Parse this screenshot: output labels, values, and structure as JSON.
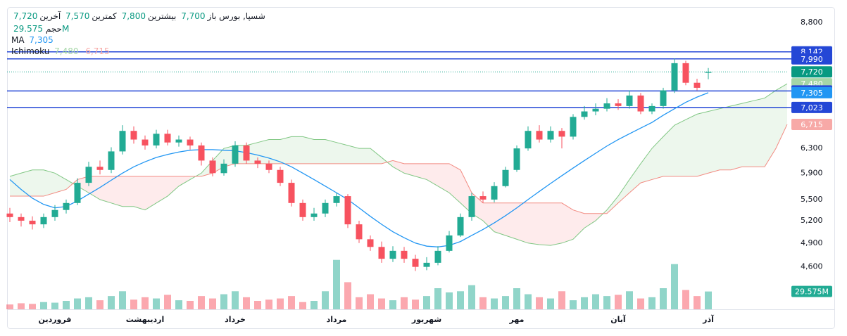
{
  "chart_data": {
    "type": "candlestick",
    "log_scale": true,
    "grid": false,
    "legend": {
      "symbol": "شسپا, بورس",
      "open_label": "باز",
      "open": "7,700",
      "high_label": "بیشترین",
      "high": "7,800",
      "low_label": "کمترین",
      "low": "7,570",
      "last_label": "آخرین",
      "last": "7,720",
      "volume_label": "حجم",
      "volume": "29.575M",
      "ma_label": "MA",
      "ma": "7,305",
      "ichimoku_label": "Ichimoku",
      "ichimoku_a": "7,480",
      "ichimoku_b": "6,715"
    },
    "categories": [
      null,
      null,
      null,
      null,
      "فروردین",
      null,
      null,
      null,
      null,
      null,
      null,
      null,
      "اردیبهشت",
      null,
      null,
      null,
      null,
      null,
      null,
      null,
      "خرداد",
      null,
      null,
      null,
      null,
      null,
      null,
      null,
      null,
      "مرداد",
      null,
      null,
      null,
      null,
      null,
      null,
      null,
      "شهریور",
      null,
      null,
      null,
      null,
      null,
      null,
      null,
      "مهر",
      null,
      null,
      null,
      null,
      null,
      null,
      null,
      null,
      "آبان",
      null,
      null,
      null,
      null,
      null,
      null,
      null,
      "آذر"
    ],
    "open": [
      5300,
      5250,
      5200,
      5150,
      5250,
      5350,
      5450,
      5750,
      6000,
      5950,
      6250,
      6600,
      6450,
      6350,
      6550,
      6400,
      6450,
      6350,
      6100,
      5900,
      6050,
      6350,
      6100,
      6050,
      5950,
      5750,
      5450,
      5250,
      5300,
      5450,
      5550,
      5150,
      4950,
      4850,
      4700,
      4800,
      4700,
      4600,
      4650,
      4800,
      5000,
      5250,
      5550,
      5500,
      5700,
      5950,
      6300,
      6600,
      6450,
      6600,
      6500,
      6850,
      6950,
      7000,
      7100,
      7050,
      7250,
      6950,
      7050,
      7350,
      7900,
      7500,
      7700
    ],
    "high": [
      5380,
      5300,
      5260,
      5300,
      5420,
      5500,
      5820,
      6080,
      6100,
      6320,
      6700,
      6680,
      6520,
      6620,
      6620,
      6520,
      6500,
      6400,
      6150,
      6120,
      6420,
      6400,
      6150,
      6100,
      6000,
      5800,
      5500,
      5380,
      5500,
      5600,
      5580,
      5200,
      5000,
      4920,
      4860,
      4850,
      4750,
      4720,
      4860,
      5060,
      5300,
      5600,
      5620,
      5760,
      6000,
      6350,
      6680,
      6700,
      6680,
      6650,
      6900,
      7050,
      7100,
      7200,
      7180,
      7350,
      7300,
      7100,
      7400,
      8000,
      7950,
      7580,
      7800
    ],
    "low": [
      5180,
      5120,
      5080,
      5100,
      5200,
      5300,
      5420,
      5700,
      5880,
      5900,
      6200,
      6380,
      6280,
      6300,
      6350,
      6330,
      6280,
      6020,
      5850,
      5860,
      6000,
      6050,
      5980,
      5900,
      5700,
      5400,
      5200,
      5200,
      5250,
      5400,
      5100,
      4900,
      4800,
      4650,
      4660,
      4650,
      4550,
      4560,
      4620,
      4780,
      4980,
      5200,
      5450,
      5460,
      5680,
      5920,
      6260,
      6400,
      6400,
      6300,
      6450,
      6800,
      6880,
      6950,
      6980,
      7000,
      6900,
      6900,
      7000,
      7300,
      7450,
      7350,
      7570
    ],
    "close": [
      5250,
      5200,
      5150,
      5250,
      5350,
      5450,
      5750,
      6000,
      5950,
      6250,
      6600,
      6450,
      6350,
      6550,
      6400,
      6450,
      6350,
      6100,
      5900,
      6050,
      6350,
      6100,
      6050,
      5950,
      5750,
      5450,
      5250,
      5300,
      5450,
      5550,
      5150,
      4950,
      4850,
      4700,
      4800,
      4700,
      4600,
      4650,
      4800,
      5000,
      5250,
      5550,
      5500,
      5700,
      5950,
      6300,
      6600,
      6450,
      6600,
      6500,
      6850,
      6950,
      7000,
      7100,
      7050,
      7250,
      6950,
      7050,
      7350,
      7900,
      7500,
      7400,
      7720
    ],
    "volume": [
      8,
      10,
      9,
      12,
      11,
      14,
      18,
      20,
      15,
      22,
      30,
      16,
      20,
      18,
      24,
      15,
      14,
      22,
      18,
      25,
      30,
      20,
      14,
      16,
      18,
      22,
      12,
      14,
      30,
      82,
      45,
      20,
      25,
      18,
      15,
      20,
      16,
      22,
      35,
      28,
      30,
      40,
      20,
      18,
      22,
      35,
      25,
      20,
      18,
      30,
      15,
      20,
      25,
      22,
      24,
      30,
      18,
      20,
      35,
      75,
      32,
      22,
      29.575
    ],
    "volume_ylim": [
      0,
      140
    ],
    "ma": [
      5800,
      5650,
      5520,
      5430,
      5380,
      5400,
      5480,
      5580,
      5680,
      5790,
      5900,
      6000,
      6080,
      6150,
      6200,
      6240,
      6270,
      6280,
      6280,
      6270,
      6260,
      6230,
      6190,
      6140,
      6080,
      6000,
      5900,
      5800,
      5700,
      5600,
      5500,
      5380,
      5260,
      5150,
      5050,
      4970,
      4900,
      4860,
      4850,
      4870,
      4920,
      5000,
      5080,
      5170,
      5270,
      5380,
      5500,
      5620,
      5740,
      5860,
      5980,
      6100,
      6220,
      6340,
      6450,
      6550,
      6650,
      6750,
      6880,
      7000,
      7120,
      7220,
      7305
    ],
    "ichimoku_a": [
      5850,
      5900,
      5950,
      5950,
      5900,
      5800,
      5700,
      5600,
      5500,
      5450,
      5400,
      5400,
      5350,
      5450,
      5550,
      5700,
      5800,
      5900,
      6100,
      6300,
      6350,
      6350,
      6400,
      6450,
      6450,
      6500,
      6500,
      6450,
      6450,
      6400,
      6350,
      6300,
      6300,
      6150,
      6000,
      5900,
      5850,
      5800,
      5700,
      5600,
      5450,
      5300,
      5200,
      5050,
      5000,
      4950,
      4900,
      4880,
      4870,
      4900,
      4950,
      5100,
      5200,
      5350,
      5550,
      5800,
      6050,
      6300,
      6500,
      6700,
      6800,
      6900,
      6950,
      7000,
      7050,
      7100,
      7150,
      7200,
      7350,
      7480
    ],
    "ichimoku_b": [
      5550,
      5550,
      5550,
      5550,
      5600,
      5650,
      5800,
      5850,
      5850,
      5850,
      5850,
      5850,
      5850,
      5850,
      5850,
      5850,
      5850,
      5850,
      5900,
      6000,
      6050,
      6050,
      6050,
      6050,
      6050,
      6050,
      6050,
      6050,
      6050,
      6050,
      6050,
      6050,
      6050,
      6050,
      6100,
      6050,
      6050,
      6050,
      6050,
      6050,
      5950,
      5600,
      5450,
      5450,
      5450,
      5450,
      5450,
      5450,
      5450,
      5450,
      5350,
      5300,
      5300,
      5300,
      5450,
      5600,
      5750,
      5800,
      5850,
      5850,
      5850,
      5850,
      5900,
      5950,
      5950,
      6000,
      6000,
      6000,
      6300,
      6715
    ],
    "ylim": [
      4110,
      9170
    ],
    "yticks": [
      {
        "value": 8800,
        "label": "8,800"
      },
      {
        "value": 6300,
        "label": "6,300"
      },
      {
        "value": 5900,
        "label": "5,900"
      },
      {
        "value": 5500,
        "label": "5,500"
      },
      {
        "value": 5200,
        "label": "5,200"
      },
      {
        "value": 4900,
        "label": "4,900"
      },
      {
        "value": 4600,
        "label": "4,600"
      }
    ],
    "price_labels": [
      {
        "value": 8142,
        "label": "8,142",
        "color": "#2447d6",
        "line": true
      },
      {
        "value": 7990,
        "label": "7,990",
        "color": "#2447d6",
        "line": true
      },
      {
        "value": 7720,
        "label": "7,720",
        "color": "#089981",
        "line": false
      },
      {
        "value": 7480,
        "label": "7,480",
        "color": "#a5d6a7",
        "line": false
      },
      {
        "value": 7339,
        "label": "7,339",
        "color": "#2447d6",
        "line": true
      },
      {
        "value": 7305,
        "label": "7,305",
        "color": "#2196f3",
        "line": false
      },
      {
        "value": 7023,
        "label": "7,023",
        "color": "#2447d6",
        "line": true
      },
      {
        "value": 6715,
        "label": "6,715",
        "color": "#f7a9a7",
        "line": false
      }
    ],
    "up_color": "#22ab94",
    "down_color": "#f7525f",
    "ma_color": "#2196f3",
    "span_a_color": "#81c784",
    "span_b_color": "#f28b82"
  }
}
